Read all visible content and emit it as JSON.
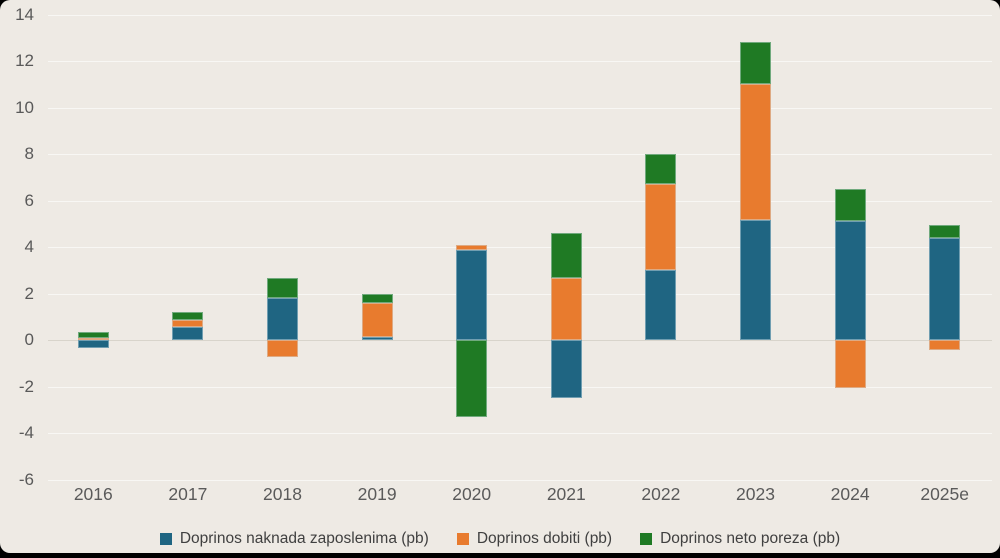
{
  "chart": {
    "background_color": "#eeeae4",
    "frame_color": "#000000",
    "axis_tick_color": "#595959",
    "legend_text_color": "#404040"
  },
  "chart_data": {
    "type": "bar",
    "stacked": true,
    "categories": [
      "2016",
      "2017",
      "2018",
      "2019",
      "2020",
      "2021",
      "2022",
      "2023",
      "2024",
      "2025e"
    ],
    "series": [
      {
        "name": "Doprinos naknada zaposlenima (pb)",
        "color": "#1f6582",
        "values": [
          -0.35,
          0.55,
          1.8,
          0.15,
          3.85,
          -2.5,
          3.0,
          5.15,
          5.1,
          4.4
        ]
      },
      {
        "name": "Doprinos dobiti (pb)",
        "color": "#e87b2e",
        "values": [
          0.1,
          0.3,
          -0.75,
          1.45,
          0.25,
          2.65,
          3.7,
          5.85,
          -2.05,
          -0.45
        ]
      },
      {
        "name": "Doprinos neto poreza (pb)",
        "color": "#1f7a24",
        "values": [
          0.25,
          0.35,
          0.85,
          0.4,
          -3.3,
          1.95,
          1.3,
          1.8,
          1.4,
          0.55
        ]
      }
    ],
    "ylim": [
      -6,
      14
    ],
    "yticks": [
      14,
      12,
      10,
      8,
      6,
      4,
      2,
      0,
      -2,
      -4,
      -6
    ],
    "grid": "zero-line-only",
    "legend_position": "bottom"
  }
}
